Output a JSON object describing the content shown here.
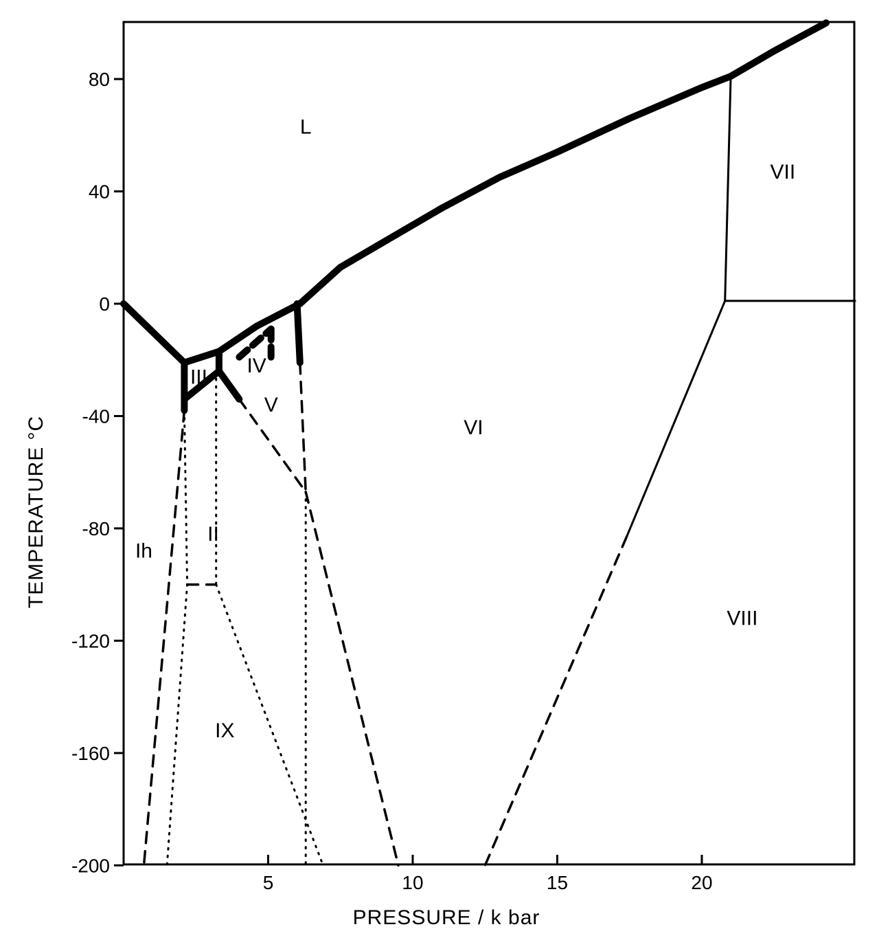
{
  "chart_data": {
    "type": "line",
    "title": "",
    "xlabel": "PRESSURE / k bar",
    "ylabel": "TEMPERATURE °C",
    "xlim": [
      0,
      25.3
    ],
    "ylim": [
      -200,
      100
    ],
    "x_ticks": [
      5,
      10,
      15,
      20
    ],
    "y_ticks": [
      80,
      40,
      0,
      -40,
      -80,
      -120,
      -160,
      -200
    ],
    "grid": false,
    "legend": "none",
    "phase_labels": [
      {
        "text": "L",
        "x": 6.3,
        "y": 63
      },
      {
        "text": "VII",
        "x": 22.8,
        "y": 47
      },
      {
        "text": "III",
        "x": 2.6,
        "y": -26
      },
      {
        "text": "IV",
        "x": 4.6,
        "y": -22
      },
      {
        "text": "V",
        "x": 5.1,
        "y": -36
      },
      {
        "text": "VI",
        "x": 12.1,
        "y": -44
      },
      {
        "text": "II",
        "x": 3.1,
        "y": -82
      },
      {
        "text": "Ih",
        "x": 0.7,
        "y": -88
      },
      {
        "text": "VIII",
        "x": 21.4,
        "y": -112
      },
      {
        "text": "IX",
        "x": 3.5,
        "y": -152
      }
    ],
    "boundaries": [
      {
        "style": "heavy",
        "x": [
          0,
          2.1
        ],
        "y": [
          0,
          -21
        ]
      },
      {
        "style": "heavy",
        "x": [
          2.1,
          3.3
        ],
        "y": [
          -21,
          -17
        ]
      },
      {
        "style": "heavy",
        "x": [
          3.3,
          4.6,
          6.1
        ],
        "y": [
          -17,
          -8,
          0
        ]
      },
      {
        "style": "heavy",
        "x": [
          6.1,
          7.5,
          9.0,
          11.0,
          13.0,
          15.0,
          17.5,
          20.0,
          21.0
        ],
        "y": [
          0,
          13,
          22,
          34,
          45,
          54,
          66,
          77,
          81
        ]
      },
      {
        "style": "heavy",
        "x": [
          21.0,
          22.5,
          24.3
        ],
        "y": [
          81,
          90,
          100
        ]
      },
      {
        "style": "heavy",
        "x": [
          2.1,
          2.1
        ],
        "y": [
          -21,
          -38
        ]
      },
      {
        "style": "heavy",
        "x": [
          2.1,
          3.3
        ],
        "y": [
          -34,
          -24
        ]
      },
      {
        "style": "heavy",
        "x": [
          3.3,
          3.3
        ],
        "y": [
          -17,
          -24
        ]
      },
      {
        "style": "heavy",
        "x": [
          3.3,
          4.0
        ],
        "y": [
          -24,
          -34
        ]
      },
      {
        "style": "heavy",
        "x": [
          6.0,
          6.1
        ],
        "y": [
          0,
          -21
        ]
      },
      {
        "style": "heavy-dashed",
        "x": [
          4.0,
          5.1
        ],
        "y": [
          -19,
          -9
        ]
      },
      {
        "style": "heavy-dashed",
        "x": [
          5.1,
          5.1
        ],
        "y": [
          -9,
          -19
        ]
      },
      {
        "style": "thin",
        "x": [
          20.8,
          21.0
        ],
        "y": [
          1,
          81
        ]
      },
      {
        "style": "thin",
        "x": [
          20.8,
          25.3
        ],
        "y": [
          1,
          1
        ]
      },
      {
        "style": "thin",
        "x": [
          20.8,
          17.4
        ],
        "y": [
          1,
          -83
        ]
      },
      {
        "style": "dashed",
        "x": [
          17.4,
          12.5
        ],
        "y": [
          -83,
          -200
        ]
      },
      {
        "style": "dashed",
        "x": [
          2.1,
          0.7
        ],
        "y": [
          -38,
          -200
        ]
      },
      {
        "style": "dashed",
        "x": [
          4.0,
          6.3
        ],
        "y": [
          -34,
          -67
        ]
      },
      {
        "style": "dashed",
        "x": [
          6.3,
          9.5
        ],
        "y": [
          -67,
          -200
        ]
      },
      {
        "style": "dashed",
        "x": [
          6.1,
          6.3
        ],
        "y": [
          -21,
          -67
        ]
      },
      {
        "style": "dashed",
        "x": [
          2.2,
          3.2
        ],
        "y": [
          -100,
          -100
        ]
      },
      {
        "style": "dotted",
        "x": [
          2.1,
          2.2,
          1.5
        ],
        "y": [
          -38,
          -100,
          -200
        ]
      },
      {
        "style": "dotted",
        "x": [
          3.2,
          3.2
        ],
        "y": [
          -24,
          -100
        ]
      },
      {
        "style": "dotted",
        "x": [
          3.2,
          6.9
        ],
        "y": [
          -100,
          -200
        ]
      },
      {
        "style": "dotted",
        "x": [
          6.3,
          6.3
        ],
        "y": [
          -67,
          -200
        ]
      }
    ]
  }
}
